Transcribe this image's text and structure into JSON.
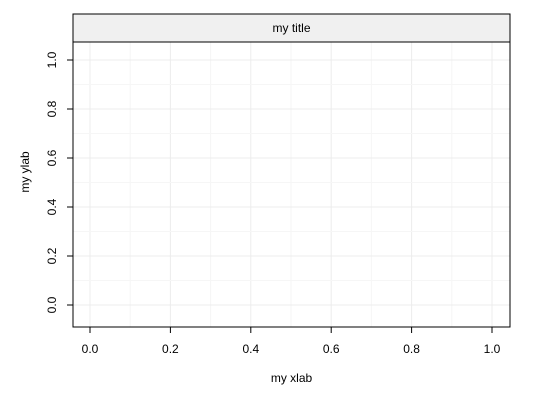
{
  "chart_data": {
    "type": "scatter",
    "title": "my title",
    "xlabel": "my xlab",
    "ylabel": "my ylab",
    "xlim": [
      0,
      1
    ],
    "ylim": [
      0,
      1
    ],
    "x_ticks": [
      "0.0",
      "0.2",
      "0.4",
      "0.6",
      "0.8",
      "1.0"
    ],
    "y_ticks": [
      "0.0",
      "0.2",
      "0.4",
      "0.6",
      "0.8",
      "1.0"
    ],
    "grid": true,
    "series": [],
    "colors": {
      "strip_background": "#f0f0f0",
      "grid": "#ececec",
      "axis": "#000000",
      "background": "#ffffff"
    }
  }
}
